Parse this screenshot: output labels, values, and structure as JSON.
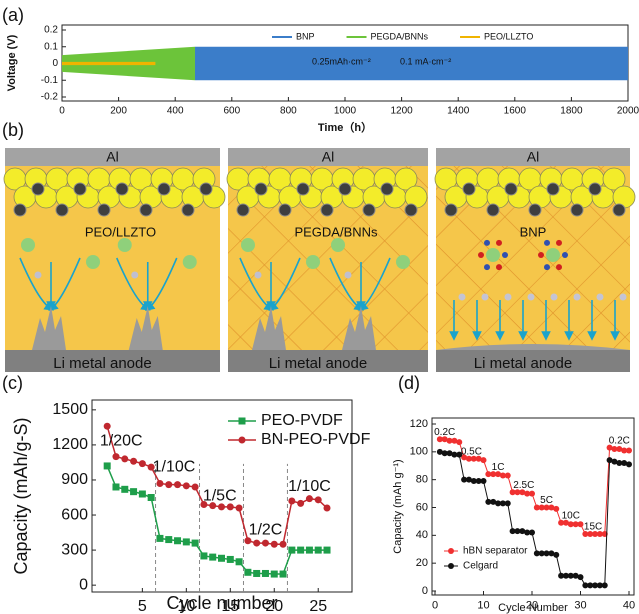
{
  "chart_data": [
    {
      "type": "band",
      "panel_label": "(a)",
      "xlabel": "Time（h）",
      "ylabel": "Voltage (V)",
      "xlim": [
        0,
        2000
      ],
      "xticks": [
        0,
        200,
        400,
        600,
        800,
        1000,
        1200,
        1400,
        1600,
        1800,
        2000
      ],
      "ylim": [
        -0.2,
        0.2
      ],
      "yticks": [
        -0.2,
        -0.1,
        0,
        0.1,
        0.2
      ],
      "legend": "top",
      "series": [
        {
          "name": "BNP",
          "color": "#3b7dc9",
          "x": [
            470,
            2000
          ],
          "upper": [
            0.1,
            0.1
          ],
          "lower": [
            -0.1,
            -0.1
          ]
        },
        {
          "name": "PEGDA/BNNs",
          "color": "#6cc43a",
          "x": [
            0,
            470
          ],
          "upper": [
            0.05,
            0.1
          ],
          "lower": [
            -0.05,
            -0.1
          ]
        },
        {
          "name": "PEO/LLZTO",
          "color": "#f0b400",
          "x": [
            0,
            330
          ],
          "upper": [
            0.01,
            0.01
          ],
          "lower": [
            -0.01,
            -0.01
          ]
        }
      ],
      "annotations": [
        "0.25mAh·cm⁻²",
        "0.1 mA·cm⁻²"
      ]
    },
    {
      "type": "line",
      "panel_label": "(c)",
      "xlabel": "Cycle number",
      "ylabel": "Capacity (mAh/g-S)",
      "xlim": [
        -0.5,
        28.5
      ],
      "xticks": [
        5,
        10,
        15,
        20,
        25
      ],
      "ylim": [
        -50,
        1550
      ],
      "yticks": [
        0,
        300,
        600,
        900,
        1200,
        1500
      ],
      "legend": "upper right",
      "dividers": [
        6.5,
        11.5,
        16.5,
        21.5
      ],
      "x": [
        1,
        2,
        3,
        4,
        5,
        6,
        7,
        8,
        9,
        10,
        11,
        12,
        13,
        14,
        15,
        16,
        17,
        18,
        19,
        20,
        21,
        22,
        23,
        24,
        25,
        26
      ],
      "series": [
        {
          "name": "PEO-PVDF",
          "color": "#1e9e4a",
          "marker": "square",
          "values": [
            1020,
            840,
            820,
            800,
            780,
            750,
            400,
            390,
            380,
            370,
            360,
            250,
            240,
            230,
            220,
            200,
            110,
            100,
            100,
            95,
            95,
            300,
            300,
            300,
            300,
            300
          ]
        },
        {
          "name": "BN-PEO-PVDF",
          "color": "#c0282f",
          "marker": "circle",
          "values": [
            1360,
            1100,
            1080,
            1060,
            1040,
            1010,
            870,
            860,
            860,
            850,
            840,
            690,
            680,
            670,
            670,
            660,
            380,
            360,
            360,
            350,
            350,
            720,
            700,
            740,
            730,
            660
          ]
        }
      ],
      "annotations": [
        "1/20C",
        "1/10C",
        "1/5C",
        "1/2C",
        "1/10C"
      ]
    },
    {
      "type": "line",
      "panel_label": "(d)",
      "xlabel": "Cycle Number",
      "ylabel": "Capacity (mAh g⁻¹)",
      "xlim": [
        0,
        40
      ],
      "xticks": [
        0,
        10,
        20,
        30,
        40
      ],
      "ylim": [
        0,
        120
      ],
      "yticks": [
        0,
        20,
        40,
        60,
        80,
        100,
        120
      ],
      "legend": "lower left",
      "x": [
        1,
        2,
        3,
        4,
        5,
        6,
        7,
        8,
        9,
        10,
        11,
        12,
        13,
        14,
        15,
        16,
        17,
        18,
        19,
        20,
        21,
        22,
        23,
        24,
        25,
        26,
        27,
        28,
        29,
        30,
        31,
        32,
        33,
        34,
        35,
        36,
        37,
        38,
        39,
        40
      ],
      "series": [
        {
          "name": "hBN separator",
          "color": "#f03030",
          "marker": "circle",
          "values": [
            109,
            109,
            108,
            108,
            107,
            96,
            95,
            95,
            95,
            94,
            84,
            84,
            84,
            83,
            83,
            71,
            71,
            71,
            70,
            70,
            60,
            60,
            60,
            60,
            59,
            49,
            49,
            48,
            48,
            48,
            41,
            41,
            41,
            41,
            41,
            103,
            102,
            102,
            101,
            101
          ]
        },
        {
          "name": "Celgard",
          "color": "#111111",
          "marker": "circle",
          "values": [
            100,
            99,
            99,
            98,
            98,
            80,
            80,
            79,
            79,
            79,
            64,
            64,
            63,
            63,
            63,
            43,
            43,
            43,
            42,
            42,
            27,
            27,
            27,
            27,
            26,
            11,
            11,
            11,
            11,
            10,
            4,
            4,
            4,
            4,
            4,
            94,
            93,
            92,
            92,
            91
          ]
        }
      ],
      "annotations": [
        "0.2C",
        "0.5C",
        "1C",
        "2.5C",
        "5C",
        "10C",
        "15C",
        "0.2C"
      ]
    }
  ],
  "diagram": {
    "panel_label": "(b)",
    "panels": [
      {
        "top": "Al",
        "label": "PEO/LLZTO",
        "bottom": "Li metal anode"
      },
      {
        "top": "Al",
        "label": "PEGDA/BNNs",
        "bottom": "Li metal anode"
      },
      {
        "top": "Al",
        "label": "BNP",
        "bottom": "Li metal anode"
      }
    ]
  }
}
